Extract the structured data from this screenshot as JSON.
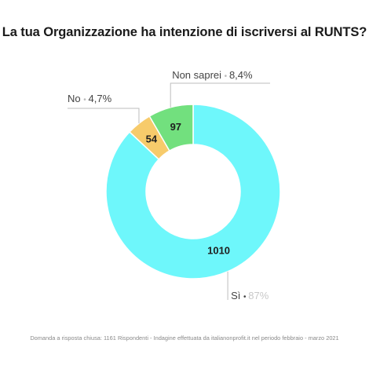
{
  "chart_data": {
    "type": "pie",
    "variant": "donut",
    "title": "La tua Organizzazione ha intenzione di iscriversi al RUNTS?",
    "slices": [
      {
        "label": "Sì",
        "value": 1010,
        "percent_label": "87%",
        "color": "#6ef7fb"
      },
      {
        "label": "No",
        "value": 54,
        "percent_label": "4,7%",
        "color": "#f7cb6b"
      },
      {
        "label": "Non saprei",
        "value": 97,
        "percent_label": "8,4%",
        "color": "#72e07e"
      }
    ],
    "separator": "•",
    "footnote": "Domanda a risposta chiusa: 1161 Rispondenti - Indagine effettuata da italianonprofit.it nel periodo febbraio - marzo 2021"
  }
}
